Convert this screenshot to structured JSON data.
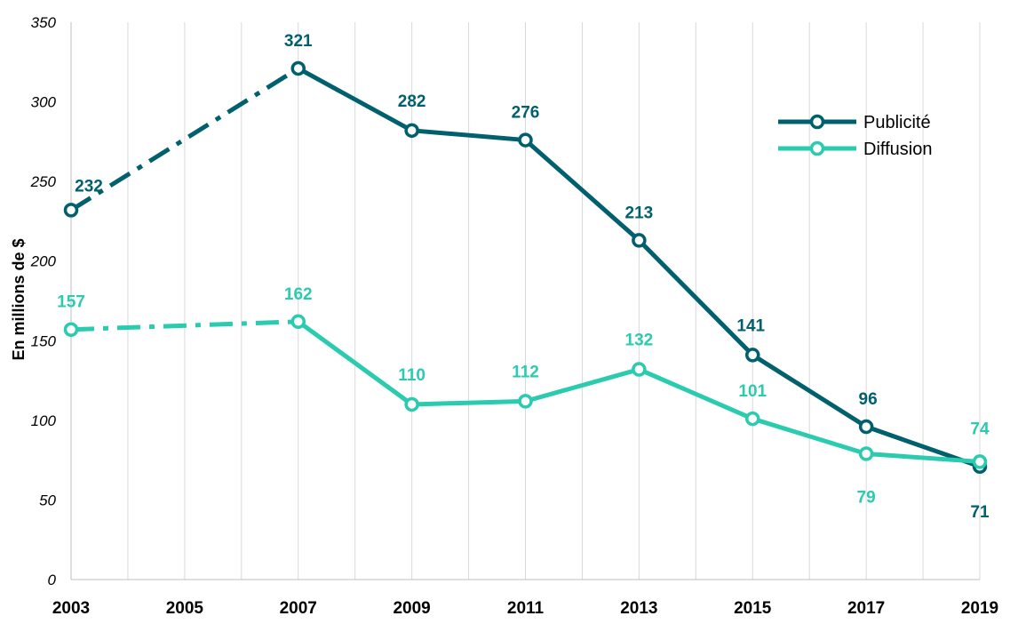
{
  "chart_data": {
    "type": "line",
    "ylabel": "En millions de $",
    "ylim": [
      0,
      350
    ],
    "yticks": [
      0,
      50,
      100,
      150,
      200,
      250,
      300,
      350
    ],
    "xlim": [
      2003,
      2019
    ],
    "xticks": [
      2003,
      2005,
      2007,
      2009,
      2011,
      2013,
      2015,
      2017,
      2019
    ],
    "grid": "vertical",
    "legend_position": "top-right",
    "series": [
      {
        "name": "Publicité",
        "color": "#00606E",
        "x": [
          2003,
          2007,
          2009,
          2011,
          2013,
          2015,
          2017,
          2019
        ],
        "values": [
          232,
          321,
          282,
          276,
          213,
          141,
          96,
          71
        ],
        "labels": [
          "232",
          "321",
          "282",
          "276",
          "213",
          "141",
          "96",
          "71"
        ],
        "dashed_first_segment": true
      },
      {
        "name": "Diffusion",
        "color": "#2ACBAE",
        "x": [
          2003,
          2007,
          2009,
          2011,
          2013,
          2015,
          2017,
          2019
        ],
        "values": [
          157,
          162,
          110,
          112,
          132,
          101,
          79,
          74
        ],
        "labels": [
          "157",
          "162",
          "110",
          "112",
          "132",
          "101",
          "79",
          "74"
        ],
        "dashed_first_segment": true
      }
    ]
  }
}
